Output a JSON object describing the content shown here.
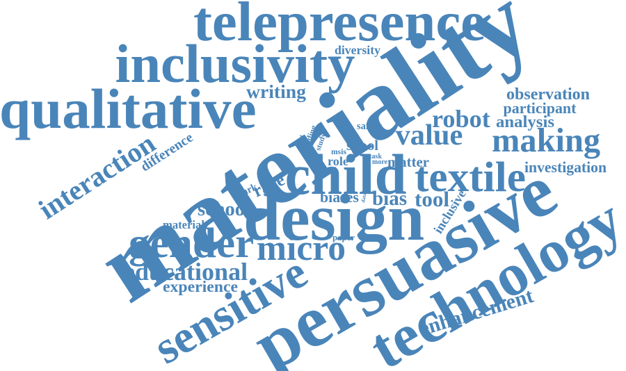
{
  "color": "#4a85b9",
  "words": [
    {
      "text": "telepresence"
    },
    {
      "text": "inclusivity"
    },
    {
      "text": "diversity"
    },
    {
      "text": "qualitative"
    },
    {
      "text": "writing"
    },
    {
      "text": "materiality"
    },
    {
      "text": "observation"
    },
    {
      "text": "participant"
    },
    {
      "text": "robot"
    },
    {
      "text": "analysis"
    },
    {
      "text": "value"
    },
    {
      "text": "making"
    },
    {
      "text": "interaction"
    },
    {
      "text": "difference"
    },
    {
      "text": "safety"
    },
    {
      "text": "aged"
    },
    {
      "text": "finding"
    },
    {
      "text": "study"
    },
    {
      "text": "spool"
    },
    {
      "text": "msis"
    },
    {
      "text": "role"
    },
    {
      "text": "task"
    },
    {
      "text": "more"
    },
    {
      "text": "matter"
    },
    {
      "text": "child"
    },
    {
      "text": "textile"
    },
    {
      "text": "investigation"
    },
    {
      "text": "race"
    },
    {
      "text": "spark"
    },
    {
      "text": "biases"
    },
    {
      "text": "data"
    },
    {
      "text": "bias"
    },
    {
      "text": "tool"
    },
    {
      "text": "inclusive"
    },
    {
      "text": "design"
    },
    {
      "text": "school"
    },
    {
      "text": "material"
    },
    {
      "text": "paper"
    },
    {
      "text": "gender"
    },
    {
      "text": "micro"
    },
    {
      "text": "persuasive"
    },
    {
      "text": "technology"
    },
    {
      "text": "educational"
    },
    {
      "text": "experience"
    },
    {
      "text": "sensitive"
    },
    {
      "text": "enhancement"
    }
  ]
}
